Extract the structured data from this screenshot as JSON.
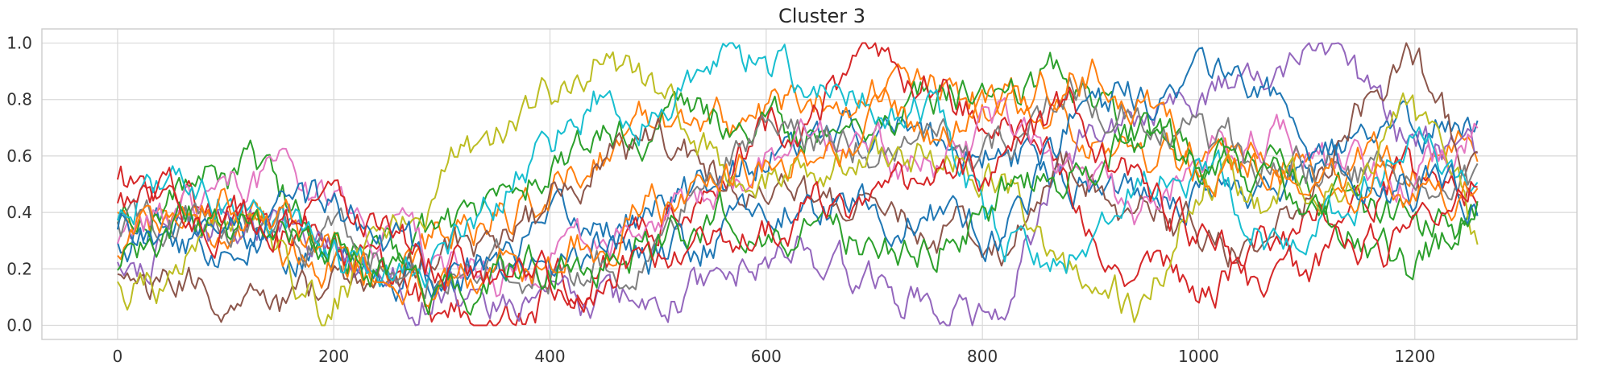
{
  "chart_data": {
    "type": "line",
    "title": "Cluster 3",
    "xlabel": "",
    "ylabel": "",
    "xlim": [
      -70,
      1350
    ],
    "ylim": [
      -0.05,
      1.05
    ],
    "x_ticks": [
      0,
      200,
      400,
      600,
      800,
      1000,
      1200
    ],
    "x_tick_labels": [
      "0",
      "200",
      "400",
      "600",
      "800",
      "1000",
      "1200"
    ],
    "y_ticks": [
      0.0,
      0.2,
      0.4,
      0.6,
      0.8,
      1.0
    ],
    "y_tick_labels": [
      "0.0",
      "0.2",
      "0.4",
      "0.6",
      "0.8",
      "1.0"
    ],
    "grid": true,
    "legend": "none",
    "x_end": 1258,
    "series": [
      {
        "color": "#1f77b4",
        "values": [
          0.3,
          0.35,
          0.28,
          0.22,
          0.18,
          0.2,
          0.3,
          0.35,
          0.4,
          0.55,
          0.62,
          0.7,
          0.65,
          0.6,
          0.55,
          0.5,
          0.48,
          0.5,
          0.6,
          0.7,
          0.73
        ]
      },
      {
        "color": "#ff7f0e",
        "values": [
          0.4,
          0.38,
          0.32,
          0.25,
          0.2,
          0.35,
          0.42,
          0.6,
          0.75,
          0.72,
          0.78,
          0.85,
          0.82,
          0.78,
          0.75,
          0.6,
          0.55,
          0.5,
          0.55,
          0.58,
          0.6
        ]
      },
      {
        "color": "#2ca02c",
        "values": [
          0.35,
          0.5,
          0.55,
          0.3,
          0.25,
          0.35,
          0.5,
          0.65,
          0.72,
          0.7,
          0.68,
          0.75,
          0.8,
          0.85,
          0.9,
          0.7,
          0.6,
          0.55,
          0.45,
          0.35,
          0.38
        ]
      },
      {
        "color": "#d62728",
        "values": [
          0.5,
          0.45,
          0.35,
          0.3,
          0.15,
          0.02,
          0.05,
          0.2,
          0.35,
          0.6,
          0.75,
          0.9,
          0.85,
          0.7,
          0.5,
          0.2,
          0.1,
          0.3,
          0.45,
          0.5,
          0.55
        ]
      },
      {
        "color": "#9467bd",
        "values": [
          0.2,
          0.3,
          0.35,
          0.28,
          0.15,
          0.1,
          0.1,
          0.02,
          0.1,
          0.2,
          0.25,
          0.15,
          0.1,
          0.05,
          0.65,
          0.75,
          0.85,
          0.9,
          0.95,
          0.65,
          0.6
        ]
      },
      {
        "color": "#8c564b",
        "values": [
          0.15,
          0.12,
          0.1,
          0.08,
          0.2,
          0.25,
          0.35,
          0.55,
          0.62,
          0.5,
          0.45,
          0.4,
          0.35,
          0.3,
          0.6,
          0.4,
          0.3,
          0.25,
          0.7,
          1.0,
          0.5
        ]
      },
      {
        "color": "#e377c2",
        "values": [
          0.25,
          0.4,
          0.55,
          0.45,
          0.3,
          0.2,
          0.15,
          0.25,
          0.3,
          0.55,
          0.65,
          0.6,
          0.55,
          0.7,
          0.5,
          0.4,
          0.6,
          0.65,
          0.55,
          0.5,
          0.68
        ]
      },
      {
        "color": "#7f7f7f",
        "values": [
          0.32,
          0.36,
          0.4,
          0.3,
          0.25,
          0.22,
          0.2,
          0.22,
          0.3,
          0.55,
          0.7,
          0.65,
          0.6,
          0.65,
          0.8,
          0.75,
          0.65,
          0.6,
          0.55,
          0.5,
          0.5
        ]
      },
      {
        "color": "#bcbd22",
        "values": [
          0.1,
          0.2,
          0.3,
          0.08,
          0.3,
          0.6,
          0.75,
          0.95,
          0.8,
          0.5,
          0.55,
          0.65,
          0.6,
          0.55,
          0.2,
          0.05,
          0.5,
          0.45,
          0.55,
          0.75,
          0.32
        ]
      },
      {
        "color": "#17becf",
        "values": [
          0.42,
          0.55,
          0.4,
          0.25,
          0.15,
          0.3,
          0.55,
          0.8,
          0.75,
          0.95,
          0.88,
          0.8,
          0.75,
          0.3,
          0.25,
          0.5,
          0.6,
          0.3,
          0.4,
          0.65,
          0.5
        ]
      },
      {
        "color": "#1f77b4",
        "values": [
          0.38,
          0.3,
          0.35,
          0.42,
          0.28,
          0.18,
          0.2,
          0.28,
          0.25,
          0.35,
          0.42,
          0.45,
          0.4,
          0.3,
          0.7,
          0.8,
          0.85,
          0.78,
          0.6,
          0.5,
          0.45
        ]
      },
      {
        "color": "#ff7f0e",
        "values": [
          0.28,
          0.45,
          0.4,
          0.3,
          0.22,
          0.15,
          0.25,
          0.3,
          0.42,
          0.5,
          0.6,
          0.7,
          0.68,
          0.75,
          0.9,
          0.85,
          0.6,
          0.55,
          0.48,
          0.5,
          0.52
        ]
      },
      {
        "color": "#2ca02c",
        "values": [
          0.22,
          0.38,
          0.32,
          0.28,
          0.2,
          0.1,
          0.18,
          0.25,
          0.3,
          0.4,
          0.35,
          0.3,
          0.28,
          0.45,
          0.55,
          0.65,
          0.55,
          0.5,
          0.35,
          0.2,
          0.4
        ]
      },
      {
        "color": "#d62728",
        "values": [
          0.45,
          0.42,
          0.36,
          0.38,
          0.3,
          0.2,
          0.15,
          0.2,
          0.28,
          0.32,
          0.4,
          0.45,
          0.5,
          0.6,
          0.75,
          0.5,
          0.3,
          0.1,
          0.25,
          0.3,
          0.5
        ]
      }
    ]
  }
}
